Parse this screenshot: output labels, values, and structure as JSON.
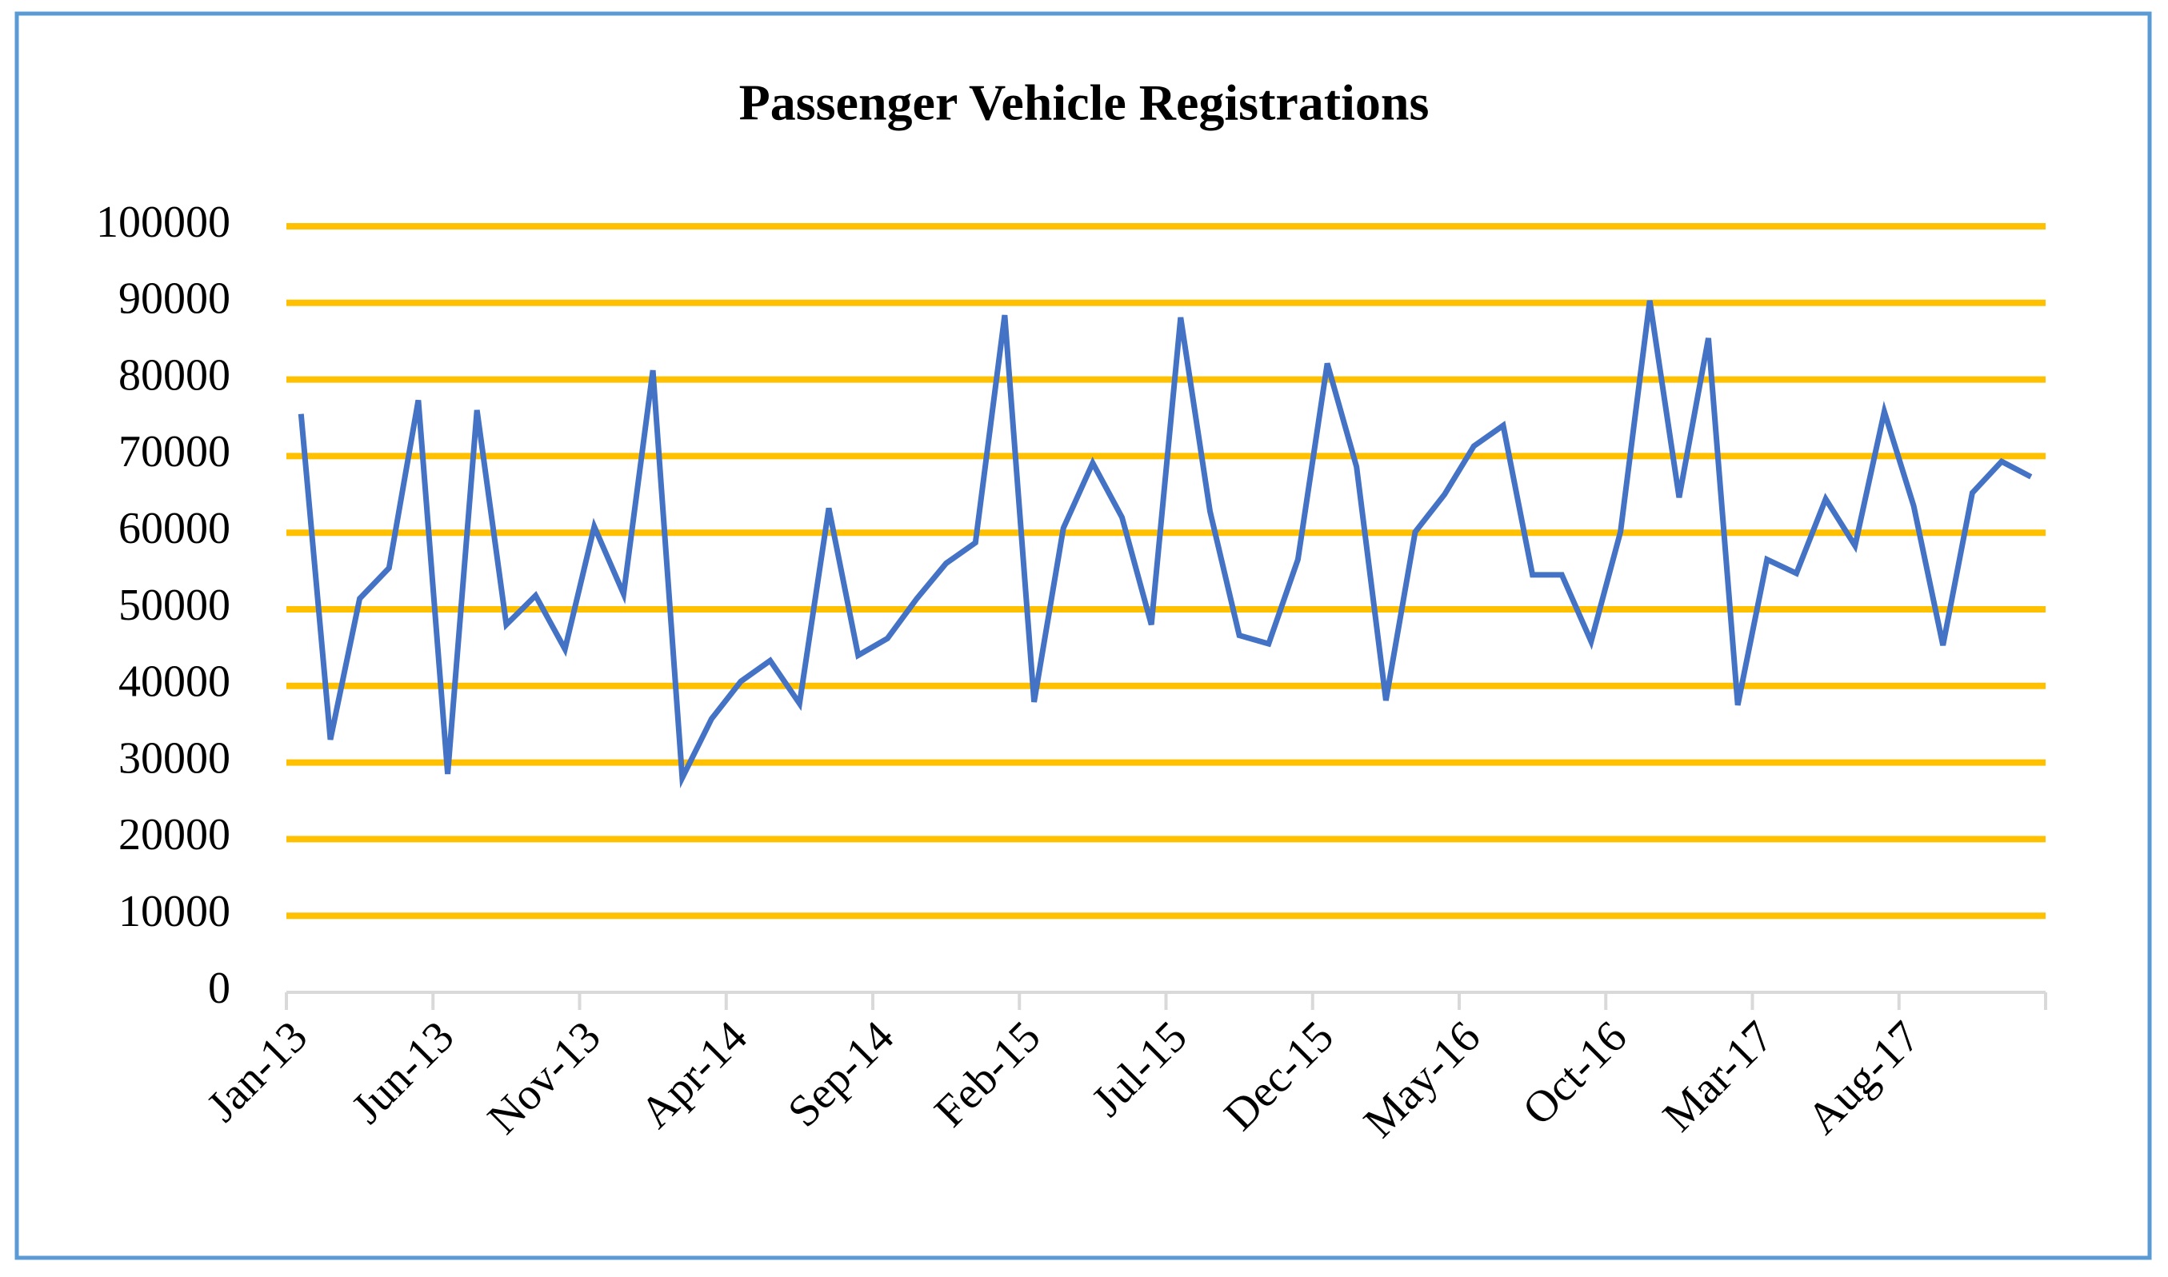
{
  "chart_data": {
    "type": "line",
    "title": "Passenger Vehicle Registrations",
    "categories": [
      "Jan-13",
      null,
      null,
      null,
      null,
      "Jun-13",
      null,
      null,
      null,
      null,
      "Nov-13",
      null,
      null,
      null,
      null,
      "Apr-14",
      null,
      null,
      null,
      null,
      "Sep-14",
      null,
      null,
      null,
      null,
      "Feb-15",
      null,
      null,
      null,
      null,
      "Jul-15",
      null,
      null,
      null,
      null,
      "Dec-15",
      null,
      null,
      null,
      null,
      "May-16",
      null,
      null,
      null,
      null,
      "Oct-16",
      null,
      null,
      null,
      null,
      "Mar-17",
      null,
      null,
      null,
      null,
      "Aug-17",
      null,
      null,
      null,
      null
    ],
    "series": [
      {
        "name": "Passenger Vehicle Registrations",
        "color": "#4472c4",
        "values": [
          75500,
          33000,
          51400,
          55400,
          77300,
          28500,
          76000,
          48000,
          51800,
          44800,
          60800,
          52000,
          81200,
          28000,
          35700,
          40600,
          43300,
          37700,
          63200,
          44000,
          46200,
          51400,
          56000,
          58700,
          88400,
          37900,
          60600,
          69100,
          62000,
          48000,
          88100,
          62800,
          46600,
          45500,
          56500,
          82100,
          68600,
          38100,
          60100,
          65000,
          71300,
          74000,
          54500,
          54500,
          45800,
          60100,
          90300,
          64600,
          85400,
          37500,
          56500,
          54700,
          64400,
          58300,
          75800,
          63500,
          45300,
          65200,
          69300,
          67300
        ]
      }
    ],
    "ylim": [
      0,
      100000
    ],
    "yticks": [
      0,
      10000,
      20000,
      30000,
      40000,
      50000,
      60000,
      70000,
      80000,
      90000,
      100000
    ],
    "grid": true,
    "grid_color": "#ffc000"
  }
}
